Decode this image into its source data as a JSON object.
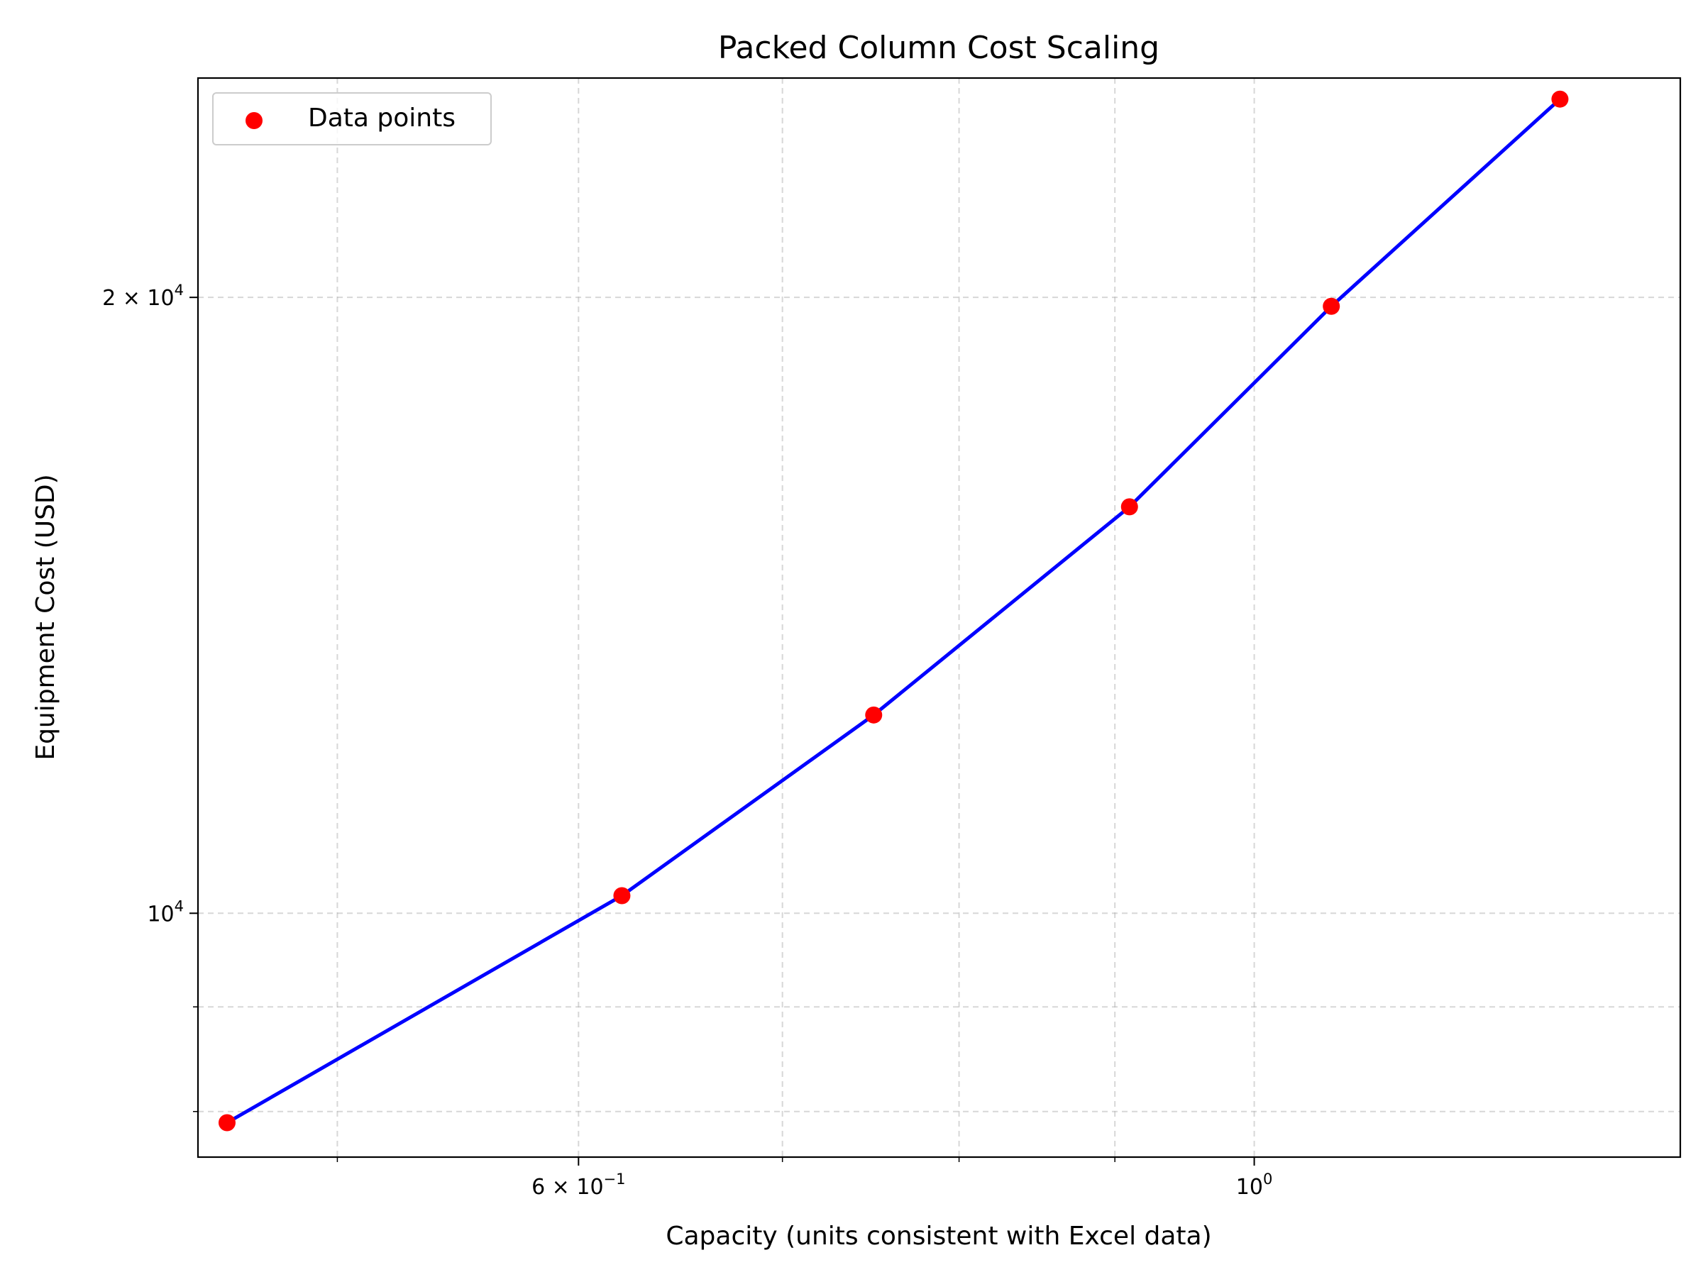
{
  "chart_data": {
    "type": "scatter",
    "title": "Packed Column Cost Scaling",
    "xlabel": "Capacity (units consistent with Excel data)",
    "ylabel": "Equipment Cost (USD)",
    "x_scale": "log",
    "y_scale": "log",
    "xlim": [
      0.45,
      1.38
    ],
    "ylim": [
      7600,
      25600
    ],
    "grid": true,
    "legend_position": "top-left",
    "series": [
      {
        "name": "Data points",
        "kind": "scatter",
        "color": "#ff0000",
        "x": [
          0.46,
          0.62,
          0.75,
          0.91,
          1.06,
          1.26
        ],
        "y": [
          7900,
          10200,
          12500,
          15800,
          19800,
          25000
        ]
      },
      {
        "kind": "line",
        "color": "#0000ff",
        "x": [
          0.46,
          0.62,
          0.75,
          0.91,
          1.06,
          1.26
        ],
        "y": [
          7900,
          10200,
          12500,
          15800,
          19800,
          25000
        ]
      }
    ],
    "x_ticks": [
      {
        "value": 0.6,
        "label": "6 × 10",
        "exp": "−1"
      },
      {
        "value": 1.0,
        "label": "10",
        "exp": "0"
      }
    ],
    "y_ticks": [
      {
        "value": 10000,
        "label": "10",
        "exp": "4"
      },
      {
        "value": 20000,
        "label": "2 × 10",
        "exp": "4"
      }
    ],
    "x_minor_ticks": [
      0.5,
      0.7,
      0.8,
      0.9
    ],
    "y_minor_ticks": [
      8000,
      9000
    ]
  }
}
